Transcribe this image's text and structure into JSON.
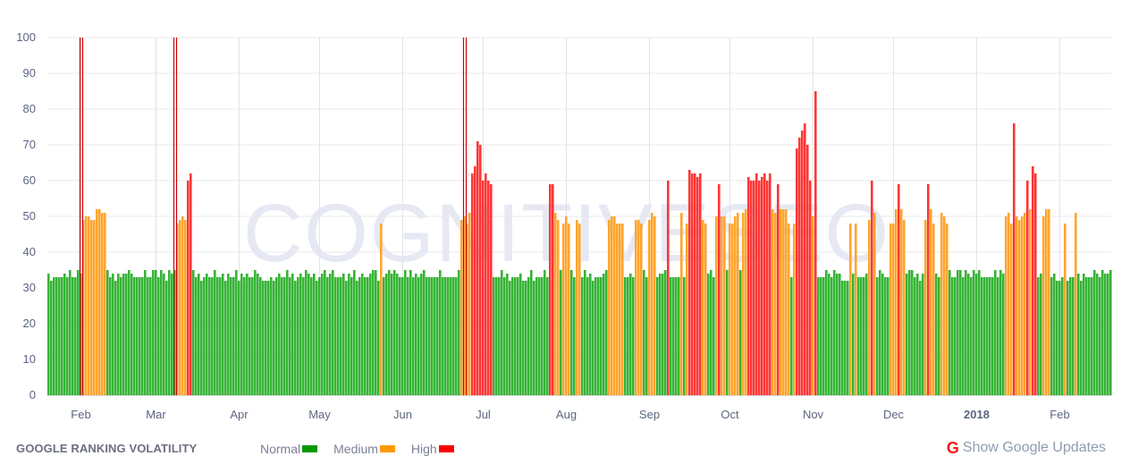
{
  "chart_data": {
    "type": "bar",
    "title": "GOOGLE RANKING VOLATILITY",
    "xlabel": "",
    "ylabel": "",
    "ylim": [
      0,
      100
    ],
    "y_ticks": [
      0,
      10,
      20,
      30,
      40,
      50,
      60,
      70,
      80,
      90,
      100
    ],
    "x_range": [
      "2017-01-20",
      "2018-02-20"
    ],
    "x_ticks": [
      {
        "date": "2017-02-01",
        "label": "Feb"
      },
      {
        "date": "2017-03-01",
        "label": "Mar"
      },
      {
        "date": "2017-04-01",
        "label": "Apr"
      },
      {
        "date": "2017-05-01",
        "label": "May"
      },
      {
        "date": "2017-06-01",
        "label": "Jun"
      },
      {
        "date": "2017-07-01",
        "label": "Jul"
      },
      {
        "date": "2017-08-01",
        "label": "Aug"
      },
      {
        "date": "2017-09-01",
        "label": "Sep"
      },
      {
        "date": "2017-10-01",
        "label": "Oct"
      },
      {
        "date": "2017-11-01",
        "label": "Nov"
      },
      {
        "date": "2017-12-01",
        "label": "Dec"
      },
      {
        "date": "2018-01-01",
        "label": "2018"
      },
      {
        "date": "2018-02-01",
        "label": "Feb"
      }
    ],
    "grid": true,
    "legend_placement": "bottom",
    "legend": [
      {
        "label": "Normal",
        "color": "#009900"
      },
      {
        "label": "Medium",
        "color": "#ff9900"
      },
      {
        "label": "High",
        "color": "#ff0000"
      }
    ],
    "bar_colors": {
      "Normal": "#36b336",
      "Medium": "#ffa52e",
      "High": "#ff3636"
    },
    "google_updates": [
      "2017-02-01",
      "2017-03-08",
      "2017-06-24"
    ],
    "google_update_color": "#cc0000",
    "values": [
      34,
      32,
      33,
      33,
      33,
      33,
      34,
      33,
      35,
      33,
      33,
      35,
      34,
      49,
      50,
      50,
      49,
      49,
      52,
      52,
      51,
      51,
      35,
      33,
      34,
      32,
      34,
      33,
      34,
      34,
      35,
      34,
      33,
      33,
      33,
      33,
      35,
      33,
      33,
      35,
      35,
      33,
      35,
      34,
      32,
      35,
      34,
      35,
      48,
      49,
      50,
      49,
      60,
      62,
      35,
      33,
      34,
      32,
      33,
      34,
      33,
      33,
      35,
      33,
      33,
      34,
      32,
      34,
      33,
      33,
      35,
      32,
      34,
      33,
      34,
      33,
      33,
      35,
      34,
      33,
      32,
      32,
      32,
      33,
      32,
      33,
      34,
      33,
      33,
      35,
      33,
      34,
      32,
      33,
      34,
      33,
      35,
      34,
      33,
      34,
      32,
      33,
      34,
      35,
      33,
      34,
      35,
      33,
      33,
      33,
      34,
      32,
      34,
      33,
      35,
      32,
      33,
      34,
      33,
      33,
      34,
      35,
      35,
      32,
      48,
      33,
      34,
      35,
      34,
      35,
      34,
      33,
      33,
      35,
      33,
      35,
      33,
      34,
      33,
      34,
      35,
      33,
      33,
      33,
      33,
      33,
      35,
      33,
      33,
      33,
      33,
      33,
      33,
      35,
      49,
      50,
      48,
      51,
      62,
      64,
      71,
      70,
      60,
      62,
      60,
      59,
      33,
      33,
      33,
      35,
      33,
      34,
      32,
      33,
      33,
      33,
      34,
      32,
      32,
      33,
      35,
      32,
      33,
      33,
      33,
      35,
      33,
      59,
      59,
      51,
      49,
      35,
      48,
      50,
      48,
      35,
      33,
      49,
      48,
      33,
      35,
      33,
      34,
      32,
      33,
      33,
      33,
      34,
      35,
      49,
      50,
      50,
      48,
      48,
      48,
      33,
      33,
      34,
      33,
      49,
      49,
      48,
      35,
      33,
      49,
      51,
      50,
      33,
      34,
      34,
      35,
      60,
      33,
      33,
      33,
      33,
      51,
      33,
      48,
      63,
      62,
      62,
      61,
      62,
      49,
      48,
      34,
      35,
      33,
      50,
      59,
      50,
      50,
      35,
      48,
      48,
      50,
      51,
      35,
      51,
      52,
      61,
      60,
      60,
      62,
      60,
      61,
      62,
      60,
      62,
      52,
      51,
      59,
      52,
      52,
      52,
      48,
      33,
      48,
      69,
      72,
      74,
      76,
      70,
      60,
      50,
      85,
      33,
      33,
      33,
      35,
      34,
      33,
      35,
      34,
      34,
      32,
      32,
      32,
      48,
      34,
      48,
      33,
      33,
      33,
      34,
      49,
      60,
      51,
      33,
      35,
      34,
      33,
      33,
      48,
      48,
      52,
      59,
      52,
      49,
      34,
      35,
      35,
      33,
      34,
      32,
      34,
      49,
      59,
      52,
      48,
      34,
      33,
      51,
      50,
      48,
      35,
      33,
      33,
      35,
      35,
      33,
      35,
      34,
      33,
      35,
      34,
      35,
      33,
      33,
      33,
      33,
      33,
      35,
      33,
      35,
      34,
      50,
      51,
      48,
      76,
      50,
      49,
      50,
      51,
      60,
      52,
      64,
      62,
      33,
      34,
      50,
      52,
      52,
      33,
      34,
      32,
      32,
      33,
      48,
      32,
      33,
      33,
      51,
      34,
      32,
      34,
      33,
      33,
      33,
      35,
      34,
      33,
      35,
      34,
      34,
      35
    ]
  },
  "watermark": "COGNITIVESEO",
  "footer": {
    "title": "GOOGLE RANKING VOLATILITY",
    "show_updates_label": "Show Google Updates",
    "show_updates_icon": "google-g-icon"
  }
}
